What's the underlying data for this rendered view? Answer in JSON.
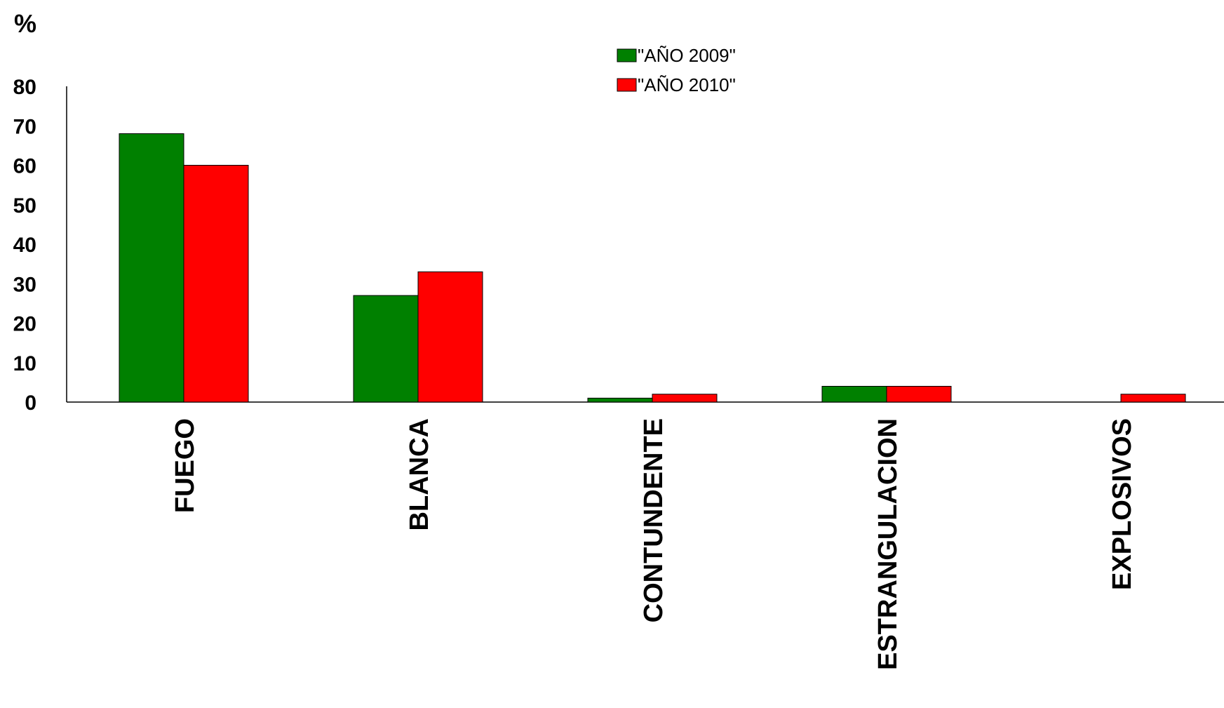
{
  "chart_data": {
    "type": "bar",
    "title": "",
    "xlabel": "",
    "ylabel": "%",
    "ylim": [
      0,
      80
    ],
    "yticks": [
      0,
      10,
      20,
      30,
      40,
      50,
      60,
      70,
      80
    ],
    "grid": false,
    "legend_position": "top-center",
    "categories": [
      "FUEGO",
      "BLANCA",
      "CONTUNDENTE",
      "ESTRANGULACION",
      "EXPLOSIVOS"
    ],
    "series": [
      {
        "name": "\"AÑO 2009\"",
        "color": "#008000",
        "values": [
          68,
          27,
          1,
          4,
          0
        ]
      },
      {
        "name": "\"AÑO 2010\"",
        "color": "#ff0000",
        "values": [
          60,
          33,
          2,
          4,
          2
        ]
      }
    ]
  }
}
